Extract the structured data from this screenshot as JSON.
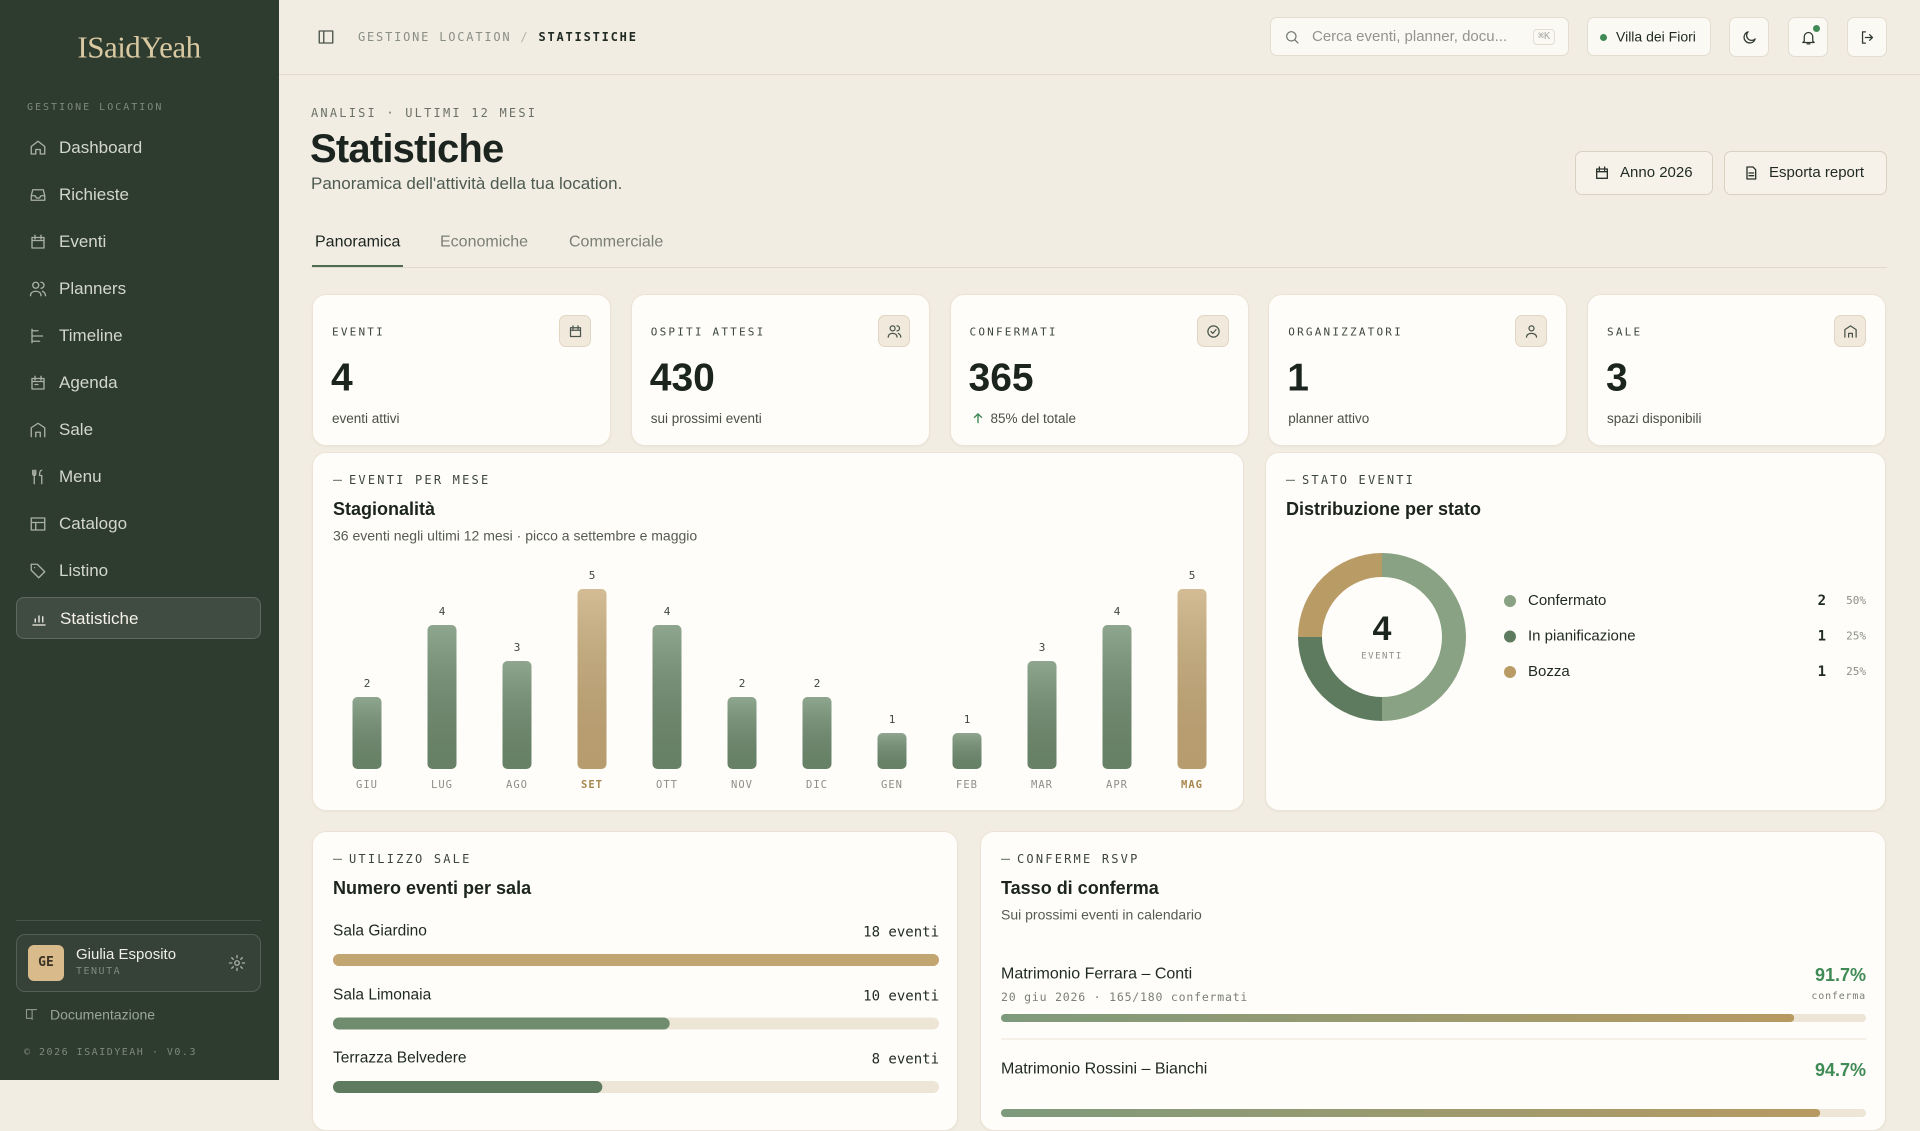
{
  "sidebar": {
    "brand": "ISaidYeah",
    "section": "GESTIONE LOCATION",
    "nav": [
      "Dashboard",
      "Richieste",
      "Eventi",
      "Planners",
      "Timeline",
      "Agenda",
      "Sale",
      "Menu",
      "Catalogo",
      "Listino",
      "Statistiche"
    ],
    "active": "Statistiche",
    "user": {
      "initials": "GE",
      "name": "Giulia Esposito",
      "role": "TENUTA"
    },
    "docs": "Documentazione",
    "footer": "© 2026 ISAIDYEAH · V0.3"
  },
  "topbar": {
    "breadcrumb": [
      "GESTIONE LOCATION",
      "STATISTICHE"
    ],
    "separator": "/",
    "search_placeholder": "Cerca eventi, planner, docu...",
    "shortcut": "⌘K",
    "location": "Villa dei Fiori"
  },
  "header": {
    "eyebrow": "ANALISI · ULTIMI 12 MESI",
    "title": "Statistiche",
    "subtitle": "Panoramica dell'attività della tua location.",
    "buttons": [
      "Anno 2026",
      "Esporta report"
    ]
  },
  "tabs": {
    "items": [
      "Panoramica",
      "Economiche",
      "Commerciale"
    ],
    "active": "Panoramica"
  },
  "kpis": [
    {
      "label": "EVENTI",
      "value": 4,
      "note": "eventi attivi"
    },
    {
      "label": "OSPITI ATTESI",
      "value": 430,
      "note": "sui prossimi eventi"
    },
    {
      "label": "CONFERMATI",
      "value": 365,
      "note": "85% del totale"
    },
    {
      "label": "ORGANIZZATORI",
      "value": 1,
      "note": "planner attivo"
    },
    {
      "label": "SALE",
      "value": 3,
      "note": "spazi disponibili"
    }
  ],
  "chart_data": [
    {
      "type": "bar",
      "kicker": "EVENTI PER MESE",
      "title": "Stagionalità",
      "subtitle": "36 eventi negli ultimi 12 mesi · picco a settembre e maggio",
      "categories": [
        "GIU",
        "LUG",
        "AGO",
        "SET",
        "OTT",
        "NOV",
        "DIC",
        "GEN",
        "FEB",
        "MAR",
        "APR",
        "MAG"
      ],
      "values": [
        2,
        4,
        3,
        5,
        4,
        2,
        2,
        1,
        1,
        3,
        4,
        5
      ],
      "colors": [
        "#6f8c6f",
        "#6f8c6f",
        "#6f8c6f",
        "#c7aa78",
        "#6f8c6f",
        "#6f8c6f",
        "#6f8c6f",
        "#6f8c6f",
        "#6f8c6f",
        "#6f8c6f",
        "#6f8c6f",
        "#c7aa78"
      ],
      "label_colors": [
        "#8b8f88",
        "#8b8f88",
        "#8b8f88",
        "#a8874f",
        "#8b8f88",
        "#8b8f88",
        "#8b8f88",
        "#8b8f88",
        "#8b8f88",
        "#8b8f88",
        "#8b8f88",
        "#a8874f"
      ],
      "ylim": [
        0,
        5
      ]
    },
    {
      "type": "pie",
      "donut": true,
      "kicker": "STATO EVENTI",
      "title": "Distribuzione per stato",
      "categories": [
        "Confermato",
        "In pianificazione",
        "Bozza"
      ],
      "values": [
        2,
        1,
        1
      ],
      "percent_labels": [
        "50%",
        "25%",
        "25%"
      ],
      "colors": [
        "#88a283",
        "#5e7a5f",
        "#b99b66"
      ],
      "center_value": 4,
      "center_label": "EVENTI"
    }
  ],
  "rooms": {
    "kicker": "UTILIZZO SALE",
    "title": "Numero eventi per sala",
    "categories": [
      "Sala Giardino",
      "Sala Limonaia",
      "Terrazza Belvedere"
    ],
    "values": [
      18,
      10,
      8
    ],
    "value_labels": [
      "18 eventi",
      "10 eventi",
      "8 eventi"
    ],
    "colors": [
      "#c2a672",
      "#6f8c6f",
      "#5e7a5f"
    ],
    "xlim": [
      0,
      18
    ]
  },
  "rsvp": {
    "kicker": "CONFERME RSVP",
    "title": "Tasso di conferma",
    "subtitle": "Sui prossimi eventi in calendario",
    "xlim": [
      0,
      100
    ],
    "gradient": [
      "#7e9a7c",
      "#b79a62"
    ],
    "events": [
      {
        "name": "Matrimonio Ferrara – Conti",
        "detail": "20 giu 2026 · 165/180 confermati",
        "rate": 91.7,
        "rate_label": "91.7%",
        "caption": "conferma"
      },
      {
        "name": "Matrimonio Rossini – Bianchi",
        "rate": 94.7,
        "rate_label": "94.7%"
      }
    ]
  }
}
